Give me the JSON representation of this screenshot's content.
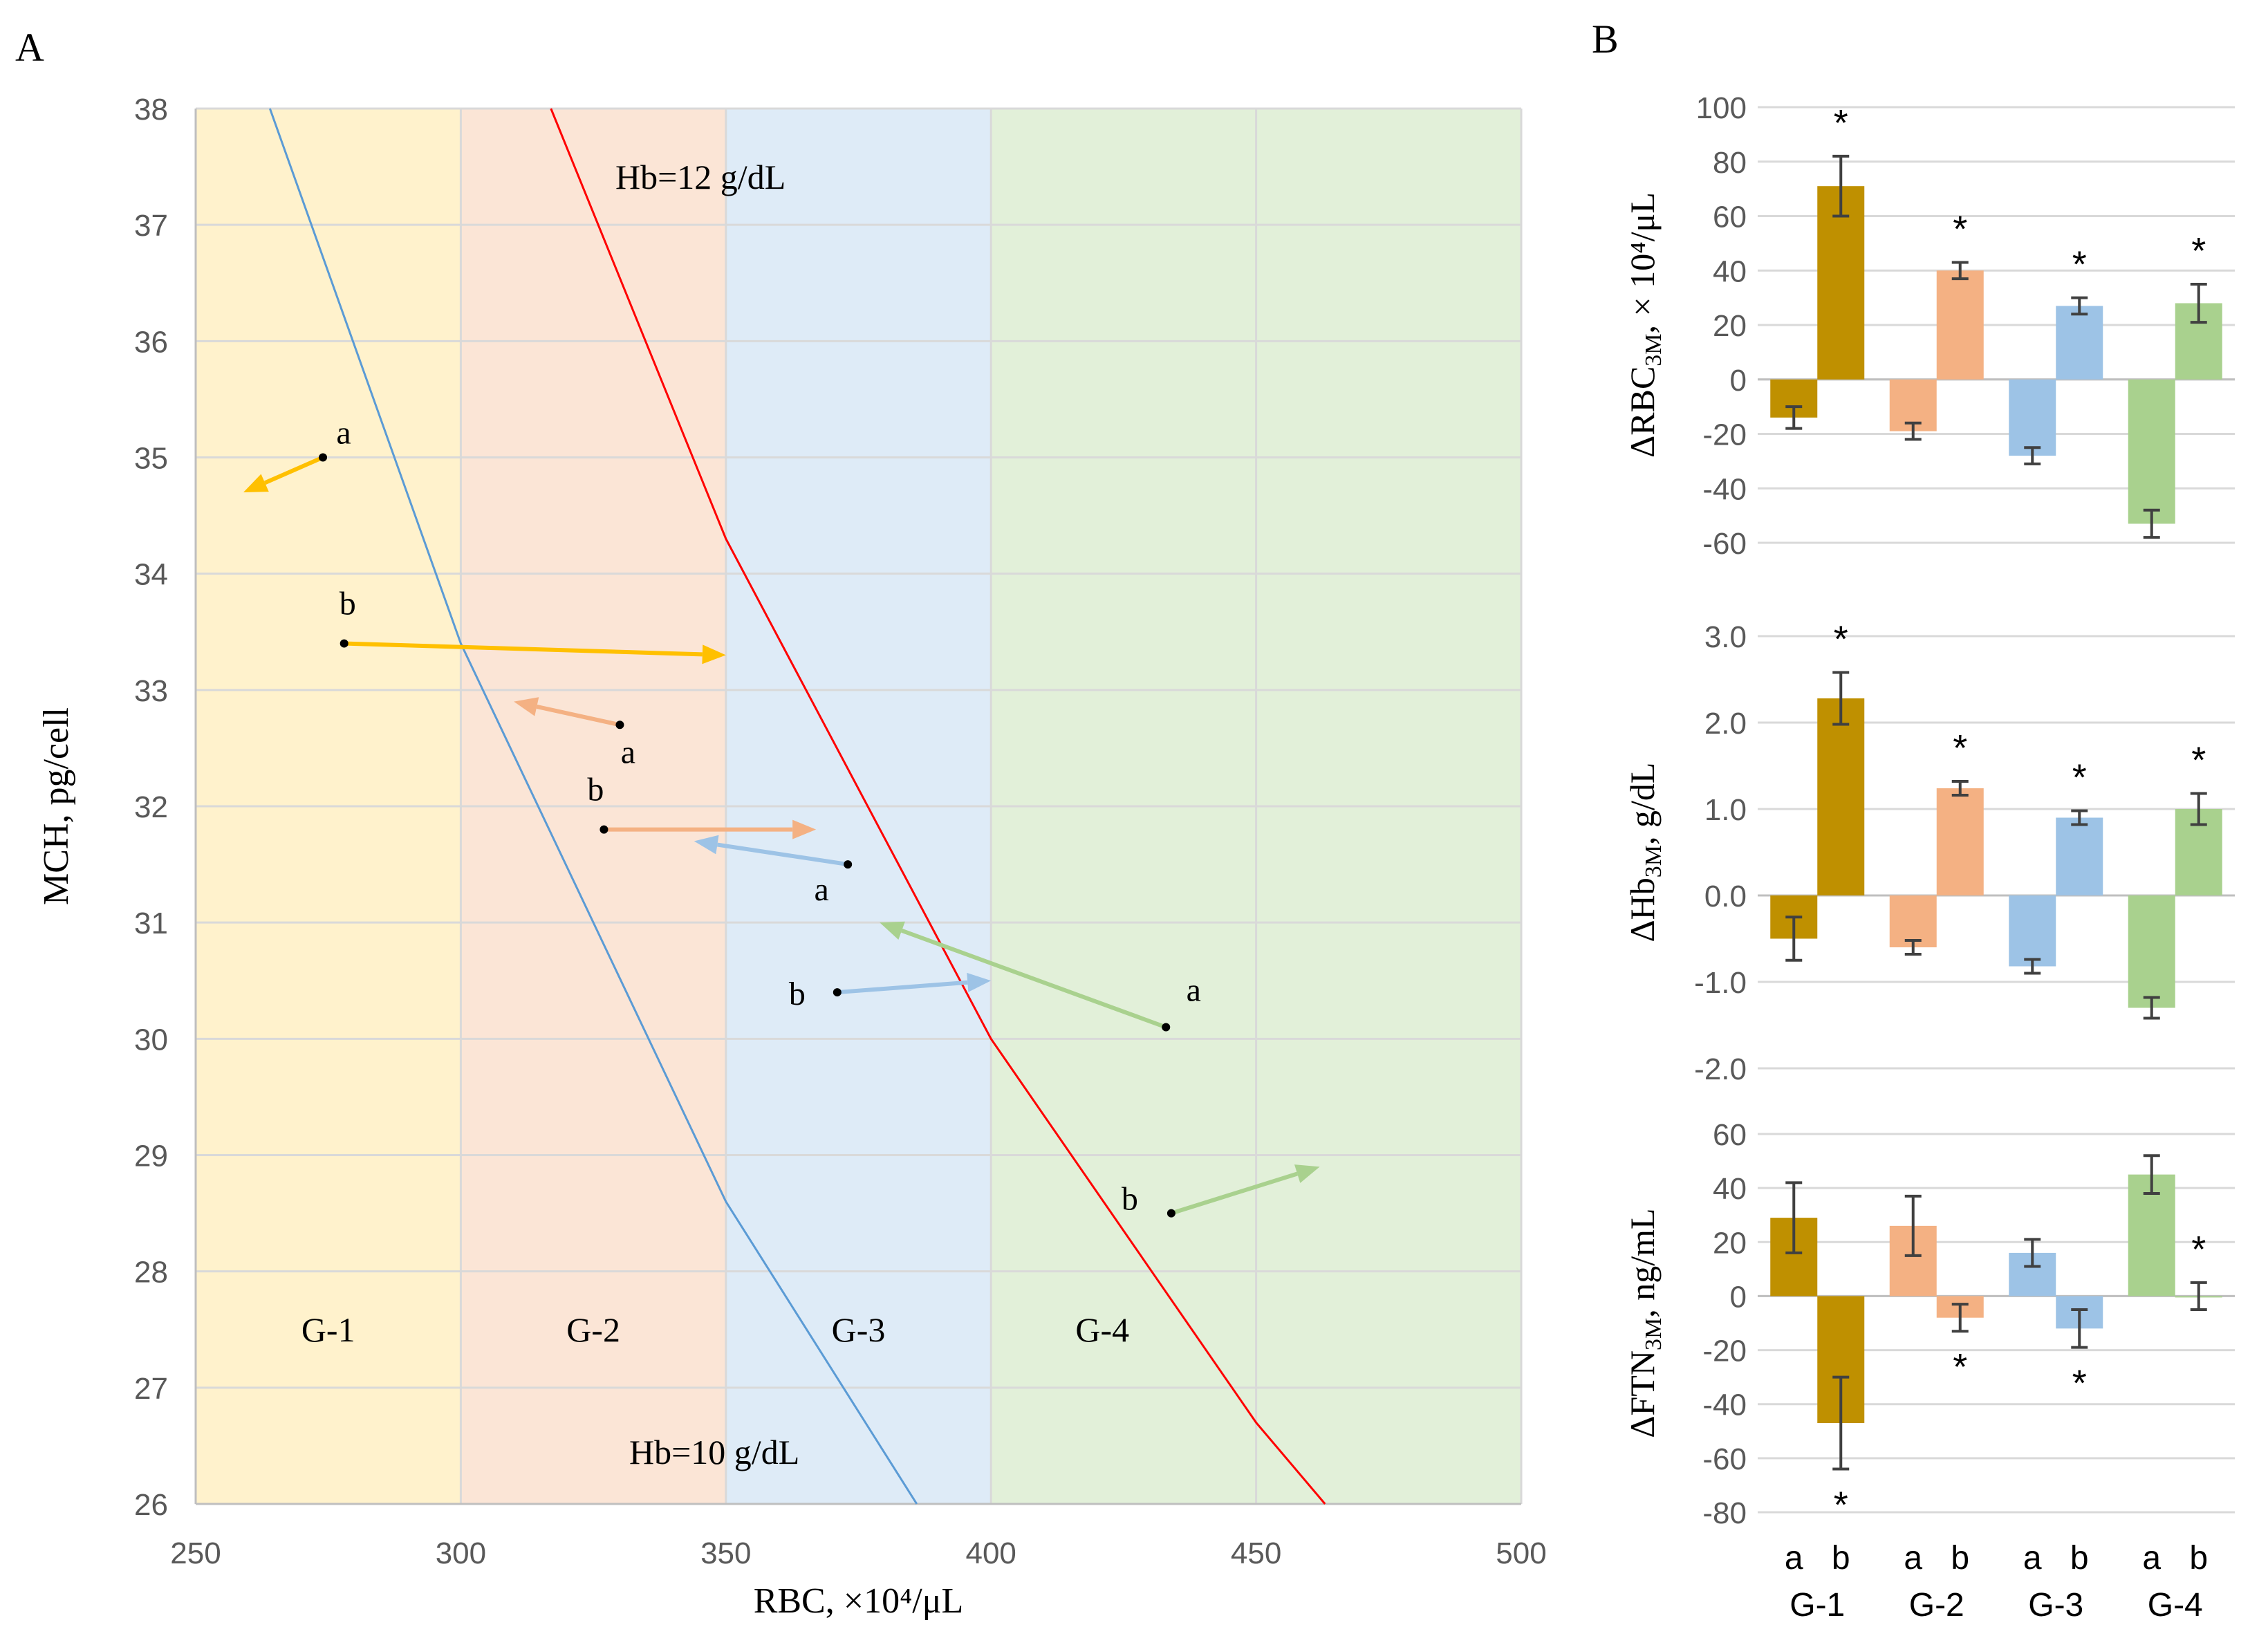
{
  "panel_labels": {
    "a": "A",
    "b": "B"
  },
  "chart_data": [
    {
      "id": "A",
      "type": "scatter",
      "xlabel": "RBC,  ×10⁴/μL",
      "ylabel": "MCH, pg/cell",
      "xlim": [
        250,
        500
      ],
      "ylim": [
        26,
        38
      ],
      "x_ticks": [
        250,
        300,
        350,
        400,
        450,
        500
      ],
      "y_ticks": [
        26,
        27,
        28,
        29,
        30,
        31,
        32,
        33,
        34,
        35,
        36,
        37,
        38
      ],
      "grid": "both",
      "bands": [
        {
          "label": "G-1",
          "x": [
            250,
            300
          ],
          "color": "#FFF2CC"
        },
        {
          "label": "G-2",
          "x": [
            300,
            350
          ],
          "color": "#FBE5D6"
        },
        {
          "label": "G-3",
          "x": [
            350,
            400
          ],
          "color": "#DEEBF7"
        },
        {
          "label": "G-4",
          "x": [
            400,
            500
          ],
          "color": "#E2F0D9"
        }
      ],
      "iso_lines": [
        {
          "label": "Hb=12 g/dL",
          "color": "#FF0000",
          "points": [
            [
              317,
              38
            ],
            [
              350,
              34.3
            ],
            [
              400,
              30.0
            ],
            [
              450,
              26.7
            ],
            [
              463,
              26
            ]
          ]
        },
        {
          "label": "Hb=10 g/dL",
          "color": "#5B9BD5",
          "points": [
            [
              264,
              38
            ],
            [
              300,
              33.4
            ],
            [
              350,
              28.6
            ],
            [
              386,
              26
            ]
          ]
        }
      ],
      "arrows": [
        {
          "group": "G-1",
          "label": "a",
          "color": "#FFC000",
          "from": [
            274,
            35.0
          ],
          "to": [
            259,
            34.7
          ]
        },
        {
          "group": "G-1",
          "label": "b",
          "color": "#FFC000",
          "from": [
            278,
            33.4
          ],
          "to": [
            350,
            33.3
          ]
        },
        {
          "group": "G-2",
          "label": "a",
          "color": "#F4B183",
          "from": [
            330,
            32.7
          ],
          "to": [
            310,
            32.9
          ]
        },
        {
          "group": "G-2",
          "label": "b",
          "color": "#F4B183",
          "from": [
            327,
            31.8
          ],
          "to": [
            367,
            31.8
          ]
        },
        {
          "group": "G-3",
          "label": "a",
          "color": "#9DC3E6",
          "from": [
            373,
            31.5
          ],
          "to": [
            344,
            31.7
          ]
        },
        {
          "group": "G-3",
          "label": "b",
          "color": "#9DC3E6",
          "from": [
            371,
            30.4
          ],
          "to": [
            400,
            30.5
          ]
        },
        {
          "group": "G-4",
          "label": "a",
          "color": "#A9D18E",
          "from": [
            433,
            30.1
          ],
          "to": [
            379,
            31.0
          ]
        },
        {
          "group": "G-4",
          "label": "b",
          "color": "#A9D18E",
          "from": [
            434,
            28.5
          ],
          "to": [
            462,
            28.9
          ]
        }
      ]
    },
    {
      "id": "B-RBC",
      "type": "bar",
      "ylabel_main": "ΔRBC",
      "ylabel_sub": "3M",
      "ylabel_rest": ", × 10⁴/μL",
      "ylim": [
        -60,
        100
      ],
      "y_ticks": [
        -60,
        -40,
        -20,
        0,
        20,
        40,
        60,
        80,
        100
      ],
      "y_tick_labels": [
        "-60",
        "-40",
        "-20",
        "0",
        "20",
        "40",
        "60",
        "80",
        "100"
      ],
      "groups": [
        "G-1",
        "G-2",
        "G-3",
        "G-4"
      ],
      "series": [
        {
          "name": "a",
          "values": [
            -14,
            -19,
            -28,
            -53
          ],
          "errors": [
            4,
            3,
            3,
            5
          ]
        },
        {
          "name": "b",
          "values": [
            71,
            40,
            27,
            28
          ],
          "errors": [
            11,
            3,
            3,
            7
          ]
        }
      ],
      "significance": [
        {
          "group": "G-1",
          "series": "b",
          "mark": "*"
        },
        {
          "group": "G-2",
          "series": "b",
          "mark": "*"
        },
        {
          "group": "G-3",
          "series": "b",
          "mark": "*"
        },
        {
          "group": "G-4",
          "series": "b",
          "mark": "*"
        }
      ]
    },
    {
      "id": "B-Hb",
      "type": "bar",
      "ylabel_main": "ΔHb",
      "ylabel_sub": "3M",
      "ylabel_rest": ", g/dL",
      "ylim": [
        -2.0,
        3.0
      ],
      "y_ticks": [
        -2,
        -1,
        0,
        1,
        2,
        3
      ],
      "y_tick_labels": [
        "-2.0",
        "-1.0",
        "0.0",
        "1.0",
        "2.0",
        "3.0"
      ],
      "groups": [
        "G-1",
        "G-2",
        "G-3",
        "G-4"
      ],
      "series": [
        {
          "name": "a",
          "values": [
            -0.5,
            -0.6,
            -0.82,
            -1.3
          ],
          "errors": [
            0.25,
            0.08,
            0.08,
            0.12
          ]
        },
        {
          "name": "b",
          "values": [
            2.28,
            1.24,
            0.9,
            1.0
          ],
          "errors": [
            0.3,
            0.08,
            0.08,
            0.18
          ]
        }
      ],
      "significance": [
        {
          "group": "G-1",
          "series": "b",
          "mark": "*"
        },
        {
          "group": "G-2",
          "series": "b",
          "mark": "*"
        },
        {
          "group": "G-3",
          "series": "b",
          "mark": "*"
        },
        {
          "group": "G-4",
          "series": "b",
          "mark": "*"
        }
      ]
    },
    {
      "id": "B-FTN",
      "type": "bar",
      "ylabel_main": "ΔFTN",
      "ylabel_sub": "3M",
      "ylabel_rest": ", ng/mL",
      "ylim": [
        -80,
        60
      ],
      "y_ticks": [
        -80,
        -60,
        -40,
        -20,
        0,
        20,
        40,
        60
      ],
      "y_tick_labels": [
        "-80",
        "-60",
        "-40",
        "-20",
        "0",
        "20",
        "40",
        "60"
      ],
      "groups": [
        "G-1",
        "G-2",
        "G-3",
        "G-4"
      ],
      "series": [
        {
          "name": "a",
          "values": [
            29,
            26,
            16,
            45
          ],
          "errors": [
            13,
            11,
            5,
            7
          ]
        },
        {
          "name": "b",
          "values": [
            -47,
            -8,
            -12,
            0
          ],
          "errors": [
            17,
            5,
            7,
            5
          ]
        }
      ],
      "significance": [
        {
          "group": "G-1",
          "series": "b",
          "mark": "*"
        },
        {
          "group": "G-2",
          "series": "b",
          "mark": "*"
        },
        {
          "group": "G-3",
          "series": "b",
          "mark": "*"
        },
        {
          "group": "G-4",
          "series": "b",
          "mark": "*"
        }
      ],
      "x_sub_labels": [
        "a",
        "b"
      ]
    }
  ],
  "colors": {
    "G-1": {
      "a": "#BF9000",
      "b": "#BF9000"
    },
    "G-2": {
      "a": "#F4B183",
      "b": "#F4B183"
    },
    "G-3": {
      "a": "#9DC3E6",
      "b": "#9DC3E6"
    },
    "G-4": {
      "a": "#A9D18E",
      "b": "#A9D18E"
    },
    "grid": "#D9D9D9",
    "axis": "#BFBFBF",
    "text": "#595959",
    "errorbar": "#404040"
  }
}
